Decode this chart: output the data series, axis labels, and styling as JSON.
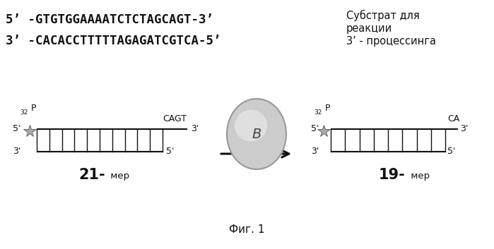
{
  "bg_color": "#ffffff",
  "seq_line1": "5’ -GTGTGGAAAATCTCTAGCAGT-3’",
  "seq_line2": "3’ -CACACCTTTTTAGAGATCGTCA-5’",
  "side_text_line1": "Субстрат для",
  "side_text_line2": "реакции",
  "side_text_line3": "3’ - процессинга",
  "fig_caption": "Фиг. 1",
  "dark_color": "#111111"
}
